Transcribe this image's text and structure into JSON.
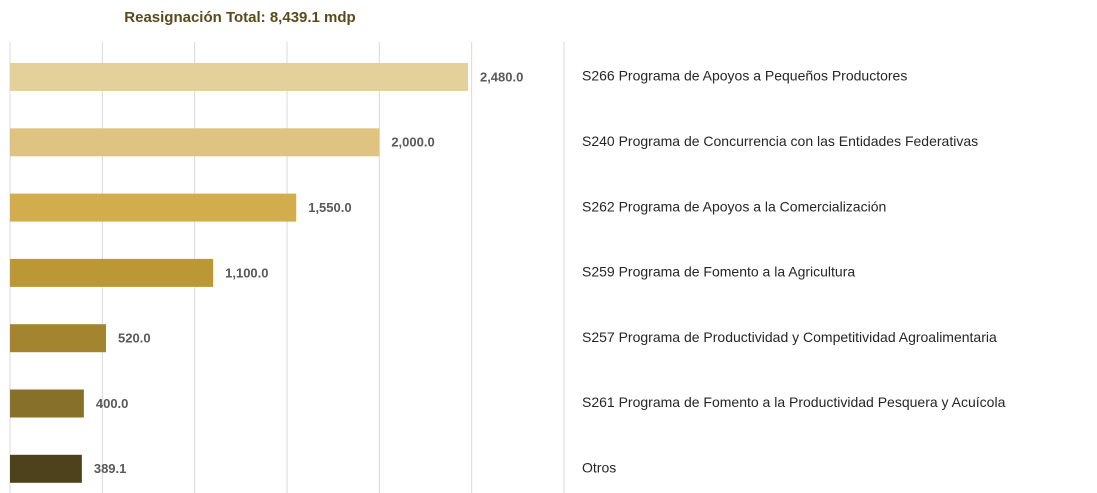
{
  "chart_data": {
    "type": "bar",
    "orientation": "horizontal",
    "title": "Reasignación Total: 8,439.1 mdp",
    "categories": [
      "S266 Programa de Apoyos a Pequeños Productores",
      "S240 Programa de Concurrencia con las Entidades Federativas",
      "S262 Programa de Apoyos a la Comercialización",
      "S259 Programa de Fomento a la Agricultura",
      "S257 Programa de Productividad y Competitividad Agroalimentaria",
      "S261 Programa de Fomento a la Productividad Pesquera y Acuícola",
      "Otros"
    ],
    "values": [
      2480.0,
      2000.0,
      1550.0,
      1100.0,
      520.0,
      400.0,
      389.1
    ],
    "value_labels": [
      "2,480.0",
      "2,000.0",
      "1,550.0",
      "1,100.0",
      "520.0",
      "400.0",
      "389.1"
    ],
    "colors": [
      "#e3d09b",
      "#dec480",
      "#d2ad4e",
      "#bc9736",
      "#a3852f",
      "#86702a",
      "#4e421c"
    ],
    "xlim": [
      0,
      3000
    ],
    "xticks": [
      0,
      500,
      1000,
      1500,
      2000,
      2500,
      3000
    ],
    "grid": true
  }
}
